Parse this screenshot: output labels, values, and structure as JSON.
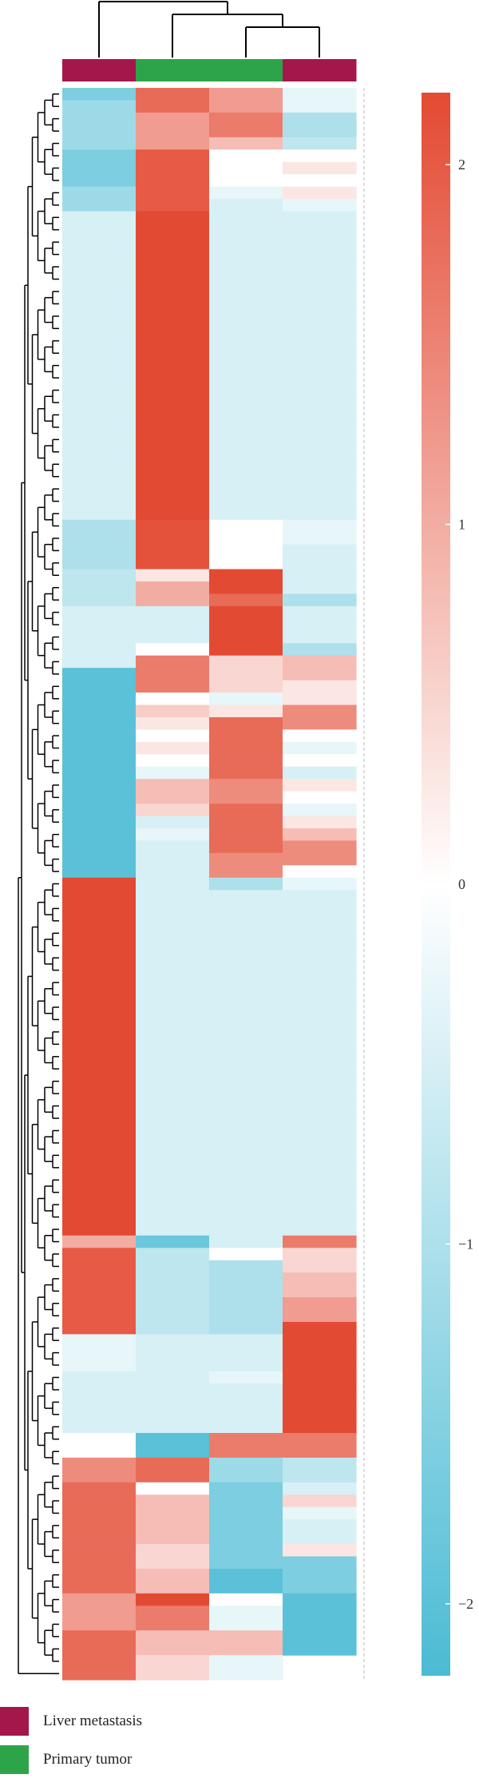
{
  "chart_data": {
    "type": "heatmap",
    "title": "",
    "columns": [
      {
        "group": "Liver metastasis",
        "values": [
          -1.6,
          -1.2,
          -1.2,
          -1.2,
          -1.2,
          -1.6,
          -1.6,
          -1.6,
          -1.2,
          -1.2,
          -0.5,
          -0.5,
          -0.5,
          -0.5,
          -0.5,
          -0.5,
          -0.5,
          -0.5,
          -0.5,
          -0.5,
          -0.5,
          -0.5,
          -0.5,
          -0.5,
          -0.5,
          -0.5,
          -0.5,
          -0.5,
          -0.5,
          -0.5,
          -0.5,
          -0.5,
          -0.5,
          -0.5,
          -0.5,
          -1.0,
          -1.0,
          -1.0,
          -1.0,
          -0.8,
          -0.8,
          -0.8,
          -0.5,
          -0.5,
          -0.5,
          -0.5,
          -0.5,
          -2.0,
          -2.0,
          -2.0,
          -2.0,
          -2.0,
          -2.0,
          -2.0,
          -2.0,
          -2.0,
          -2.0,
          -2.0,
          -2.0,
          -2.0,
          -2.0,
          -2.0,
          -2.0,
          -2.0,
          2.2,
          2.2,
          2.2,
          2.2,
          2.2,
          2.2,
          2.2,
          2.2,
          2.2,
          2.2,
          2.2,
          2.2,
          2.2,
          2.2,
          2.2,
          2.2,
          2.2,
          2.2,
          2.2,
          2.2,
          2.2,
          2.2,
          2.2,
          2.2,
          2.2,
          2.2,
          2.2,
          2.2,
          2.2,
          1.0,
          2.0,
          2.0,
          2.0,
          2.0,
          2.0,
          2.0,
          2.0,
          -0.3,
          -0.3,
          -0.3,
          -0.5,
          -0.5,
          -0.5,
          -0.5,
          -0.5,
          0.0,
          0.0,
          1.4,
          1.4,
          1.8,
          1.8,
          1.8,
          1.8,
          1.8,
          1.8,
          1.8,
          1.8,
          1.8,
          1.2,
          1.2,
          1.2,
          1.8,
          1.8,
          1.8,
          1.8
        ]
      },
      {
        "group": "Primary tumor",
        "values": [
          1.8,
          1.8,
          1.2,
          1.2,
          1.2,
          2.0,
          2.0,
          2.0,
          2.0,
          2.0,
          2.2,
          2.2,
          2.2,
          2.2,
          2.2,
          2.2,
          2.2,
          2.2,
          2.2,
          2.2,
          2.2,
          2.2,
          2.2,
          2.2,
          2.2,
          2.2,
          2.2,
          2.2,
          2.2,
          2.2,
          2.2,
          2.2,
          2.2,
          2.2,
          2.2,
          2.1,
          2.1,
          2.1,
          2.1,
          0.3,
          1.0,
          1.0,
          -0.5,
          -0.5,
          -0.5,
          0.0,
          1.6,
          1.6,
          1.6,
          0.0,
          0.6,
          0.3,
          0.0,
          0.3,
          0.0,
          -0.3,
          0.8,
          0.8,
          0.5,
          -0.5,
          -0.3,
          -0.5,
          -0.5,
          -0.5,
          -0.5,
          -0.5,
          -0.5,
          -0.5,
          -0.5,
          -0.5,
          -0.5,
          -0.5,
          -0.5,
          -0.5,
          -0.5,
          -0.5,
          -0.5,
          -0.5,
          -0.5,
          -0.5,
          -0.5,
          -0.5,
          -0.5,
          -0.5,
          -0.5,
          -0.5,
          -0.5,
          -0.5,
          -0.5,
          -0.5,
          -0.5,
          -0.5,
          -0.5,
          -1.8,
          -0.8,
          -0.8,
          -0.8,
          -0.8,
          -0.8,
          -0.8,
          -0.8,
          -0.5,
          -0.5,
          -0.5,
          -0.5,
          -0.5,
          -0.5,
          -0.5,
          -0.5,
          -2.0,
          -2.0,
          1.8,
          1.8,
          0.0,
          0.8,
          0.8,
          0.8,
          0.8,
          0.5,
          0.5,
          0.8,
          0.8,
          2.2,
          1.6,
          1.6,
          0.8,
          0.8,
          0.5,
          0.5
        ]
      },
      {
        "group": "Primary tumor",
        "values": [
          1.2,
          1.2,
          1.6,
          1.6,
          0.8,
          0.0,
          0.0,
          0.0,
          -0.3,
          -0.5,
          -0.5,
          -0.5,
          -0.5,
          -0.5,
          -0.5,
          -0.5,
          -0.5,
          -0.5,
          -0.5,
          -0.5,
          -0.5,
          -0.5,
          -0.5,
          -0.5,
          -0.5,
          -0.5,
          -0.5,
          -0.5,
          -0.5,
          -0.5,
          -0.5,
          -0.5,
          -0.5,
          -0.5,
          -0.5,
          0.0,
          0.0,
          0.0,
          0.0,
          2.2,
          2.2,
          1.8,
          2.2,
          2.2,
          2.2,
          2.2,
          0.5,
          0.5,
          0.5,
          -0.3,
          0.3,
          1.8,
          1.8,
          1.8,
          1.8,
          1.8,
          1.4,
          1.4,
          1.8,
          1.8,
          1.8,
          1.8,
          1.4,
          1.4,
          -1.0,
          -0.5,
          -0.5,
          -0.5,
          -0.5,
          -0.5,
          -0.5,
          -0.5,
          -0.5,
          -0.5,
          -0.5,
          -0.5,
          -0.5,
          -0.5,
          -0.5,
          -0.5,
          -0.5,
          -0.5,
          -0.5,
          -0.5,
          -0.5,
          -0.5,
          -0.5,
          -0.5,
          -0.5,
          -0.5,
          -0.5,
          -0.5,
          -0.5,
          -0.5,
          0.0,
          -1.0,
          -1.0,
          -1.0,
          -1.0,
          -1.0,
          -1.0,
          -0.5,
          -0.5,
          -0.5,
          -0.3,
          -0.5,
          -0.5,
          -0.5,
          -0.5,
          1.6,
          1.6,
          -1.2,
          -1.2,
          -1.6,
          -1.6,
          -1.6,
          -1.6,
          -1.6,
          -1.6,
          -1.6,
          -2.0,
          -2.0,
          0.0,
          -0.3,
          -0.3,
          0.8,
          0.8,
          -0.3,
          -0.3
        ]
      },
      {
        "group": "Liver metastasis",
        "values": [
          -0.3,
          -0.3,
          -1.0,
          -1.0,
          -0.8,
          0.0,
          0.3,
          0.0,
          0.3,
          -0.3,
          -0.5,
          -0.5,
          -0.5,
          -0.5,
          -0.5,
          -0.5,
          -0.5,
          -0.5,
          -0.5,
          -0.5,
          -0.5,
          -0.5,
          -0.5,
          -0.5,
          -0.5,
          -0.5,
          -0.5,
          -0.5,
          -0.5,
          -0.5,
          -0.5,
          -0.5,
          -0.5,
          -0.5,
          -0.5,
          -0.3,
          -0.3,
          -0.5,
          -0.5,
          -0.5,
          -0.5,
          -1.0,
          -0.5,
          -0.5,
          -0.5,
          -1.0,
          0.8,
          0.8,
          0.3,
          0.3,
          1.4,
          1.4,
          0.0,
          -0.3,
          0.0,
          -0.5,
          0.3,
          0.0,
          -0.3,
          0.3,
          0.8,
          1.4,
          1.4,
          0.0,
          -0.3,
          -0.5,
          -0.5,
          -0.5,
          -0.5,
          -0.5,
          -0.5,
          -0.5,
          -0.5,
          -0.5,
          -0.5,
          -0.5,
          -0.5,
          -0.5,
          -0.5,
          -0.5,
          -0.5,
          -0.5,
          -0.5,
          -0.5,
          -0.5,
          -0.5,
          -0.5,
          -0.5,
          -0.5,
          -0.5,
          -0.5,
          -0.5,
          -0.5,
          1.6,
          0.5,
          0.5,
          0.8,
          0.8,
          1.2,
          1.2,
          2.2,
          2.2,
          2.2,
          2.2,
          2.2,
          2.2,
          2.2,
          2.2,
          2.2,
          1.6,
          1.6,
          -0.8,
          -0.8,
          -0.5,
          0.5,
          -0.3,
          -0.5,
          -0.5,
          0.3,
          -1.6,
          -1.6,
          -1.6,
          -2.0,
          -2.0,
          -2.0,
          -2.0,
          -2.0
        ]
      }
    ],
    "colorbar": {
      "ticks": [
        2,
        1,
        0,
        -1,
        -2
      ],
      "min": -2.2,
      "max": 2.2,
      "colors": {
        "low": "#4bbbd4",
        "mid": "#ffffff",
        "high": "#e34a33"
      }
    },
    "legend": [
      {
        "label": "Liver metastasis",
        "color": "#a3174b"
      },
      {
        "label": "Primary tumor",
        "color": "#2ea44a"
      }
    ],
    "group_colors": {
      "Liver metastasis": "#a3174b",
      "Primary tumor": "#2ea44a"
    },
    "row_dendrogram": true,
    "column_dendrogram": true
  }
}
